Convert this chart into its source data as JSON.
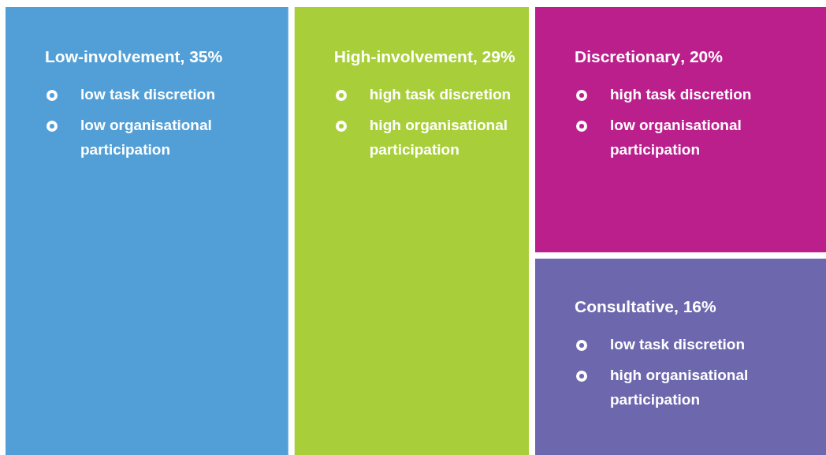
{
  "chart_data": {
    "type": "other",
    "categories": [
      "Low-involvement",
      "High-involvement",
      "Discretionary",
      "Consultative"
    ],
    "values": [
      35,
      29,
      20,
      16
    ],
    "value_labels": [
      ", 35%",
      ", 29%",
      ", 20%",
      ", 16%"
    ],
    "colors": [
      "#529fd7",
      "#a8cf3a",
      "#bb1f8c",
      "#6d68ae"
    ],
    "annotations": [
      "low task discretion",
      "low organisational participation",
      "high task discretion",
      "high organisational participation",
      "high task discretion",
      "low organisational participation",
      "low task discretion",
      "high organisational participation"
    ]
  }
}
